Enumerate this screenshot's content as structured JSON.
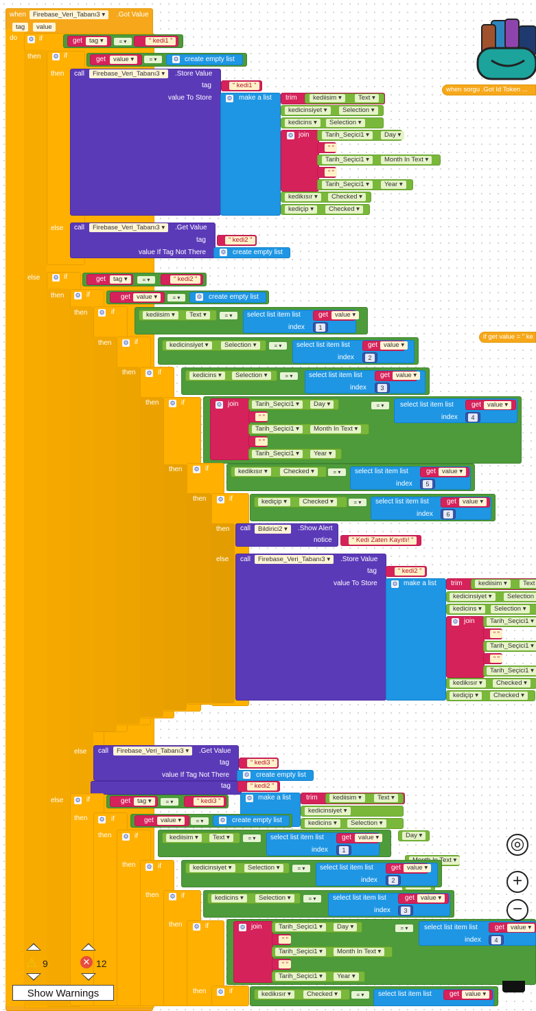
{
  "kw": {
    "when": "when",
    "do": "do",
    "if": "if",
    "then": "then",
    "else": "else",
    "call": "call",
    "get": "get",
    "tag": "tag",
    "index": "index",
    "notice": "notice",
    "value_to_store": "value To Store",
    "value_if_not": "value If Tag Not There",
    "make_list": "make a list",
    "create_empty": "create empty list",
    "join": "join",
    "trim": "trim",
    "select_list": "select list item  list",
    "eq": "= ▾"
  },
  "event": {
    "component": "Firebase_Veri_Tabanı3 ▾",
    "event": ".Got Value",
    "param1": "tag",
    "param2": "value"
  },
  "vars": {
    "tag": "tag ▾",
    "value": "value ▾"
  },
  "strings": {
    "kedi1": "kedi1",
    "kedi2": "kedi2",
    "kedi3": "kedi3",
    "empty": "",
    "alert": "Kedi Zaten Kayıtlı!"
  },
  "components": {
    "firebase": "Firebase_Veri_Tabanı3 ▾",
    "store": ".Store Value",
    "getval": ".Get Value",
    "bildirici": "Bildirici2 ▾",
    "show_alert": ".Show Alert",
    "kediisim": "kediisim ▾",
    "kedicinsiyet": "kedicinsiyet ▾",
    "kedicins": "kedicins ▾",
    "tarih": "Tarih_Seçici1 ▾",
    "kedikisir": "kedikısır ▾",
    "kedicip": "kediçip ▾"
  },
  "props": {
    "text": "Text ▾",
    "selection": "Selection ▾",
    "day": "Day ▾",
    "month": "Month In Text ▾",
    "year": "Year ▾",
    "checked": "Checked ▾"
  },
  "indices": [
    "1",
    "2",
    "3",
    "4",
    "5",
    "6"
  ],
  "side": {
    "got_token": "when  sorgu .Got Id Token ...",
    "if_get": "if get value = \" ke"
  },
  "warnings": {
    "count": "9",
    "errors": "12",
    "button": "Show Warnings"
  },
  "colors": {
    "event": "#f6a81a",
    "control": "#ffb000",
    "procedure": "#5b3ab8",
    "logic": "#4d9b3a",
    "component": "#79b83a",
    "list": "#1e96e4",
    "text": "#d6225b",
    "math": "#3656a8"
  }
}
